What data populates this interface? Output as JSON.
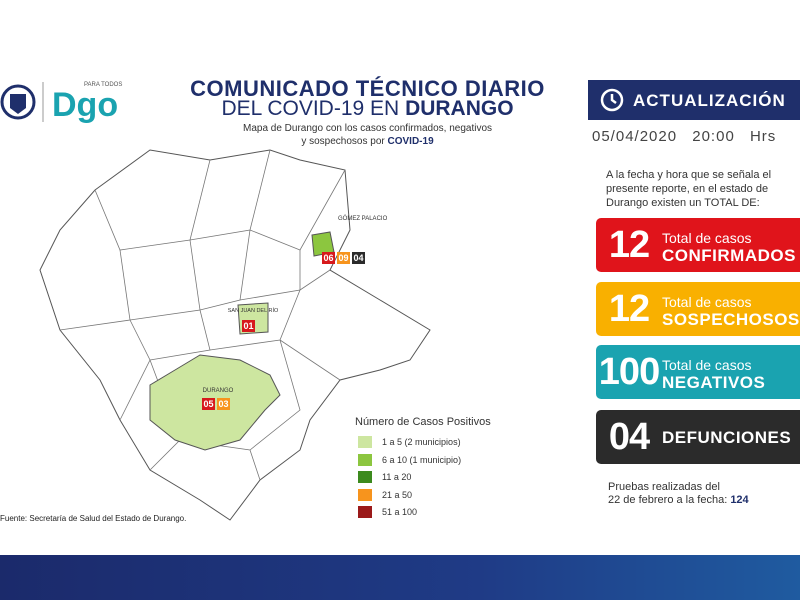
{
  "header": {
    "logo_tag": "PARA TODOS",
    "logo": "Dgo",
    "title_line1": "COMUNICADO TÉCNICO DIARIO",
    "title_line2_prefix": "DEL COVID-19 EN",
    "title_line2_emph": "DURANGO",
    "subtitle_line1": "Mapa de Durango con los casos confirmados, negativos",
    "subtitle_line2_prefix": "y sospechosos por",
    "subtitle_line2_emph": "COVID-19"
  },
  "update": {
    "label": "ACTUALIZACIÓN",
    "date": "05/04/2020",
    "time": "20:00 Hrs"
  },
  "intro": "A la fecha y hora que se señala el presente reporte, en el estado de Durango existen un TOTAL DE:",
  "stats": [
    {
      "number": "12",
      "line1": "Total de casos",
      "line2": "CONFIRMADOS",
      "color": "#e0141b"
    },
    {
      "number": "12",
      "line1": "Total de casos",
      "line2": "SOSPECHOSOS",
      "color": "#f9b000"
    },
    {
      "number": "100",
      "line1": "Total de casos",
      "line2": "NEGATIVOS",
      "color": "#1aa3b0"
    },
    {
      "number": "04",
      "line2": "DEFUNCIONES",
      "color": "#2b2b2b"
    }
  ],
  "tests": {
    "line1": "Pruebas realizadas del",
    "line2": "22 de febrero a la fecha:",
    "value": "124"
  },
  "map": {
    "regions": [
      {
        "label": "GÓMEZ PALACIO",
        "badges": [
          "06",
          "09",
          "04"
        ]
      },
      {
        "label": "SAN JUAN DEL RÍO",
        "badges": [
          "01"
        ]
      },
      {
        "label": "DURANGO",
        "badges": [
          "05",
          "03"
        ]
      }
    ]
  },
  "legend": {
    "title": "Número de Casos Positivos",
    "items": [
      {
        "label": "1 a 5",
        "note": "(2 municipios)",
        "color": "#cde6a0"
      },
      {
        "label": "6 a 10",
        "note": "(1 municipio)",
        "color": "#8cc63f"
      },
      {
        "label": "11 a 20",
        "color": "#3c8a1e"
      },
      {
        "label": "21 a 50",
        "color": "#f7941d"
      },
      {
        "label": "51 a 100",
        "color": "#9b1a1a"
      }
    ]
  },
  "source": "Fuente: Secretaría de Salud del Estado de Durango."
}
